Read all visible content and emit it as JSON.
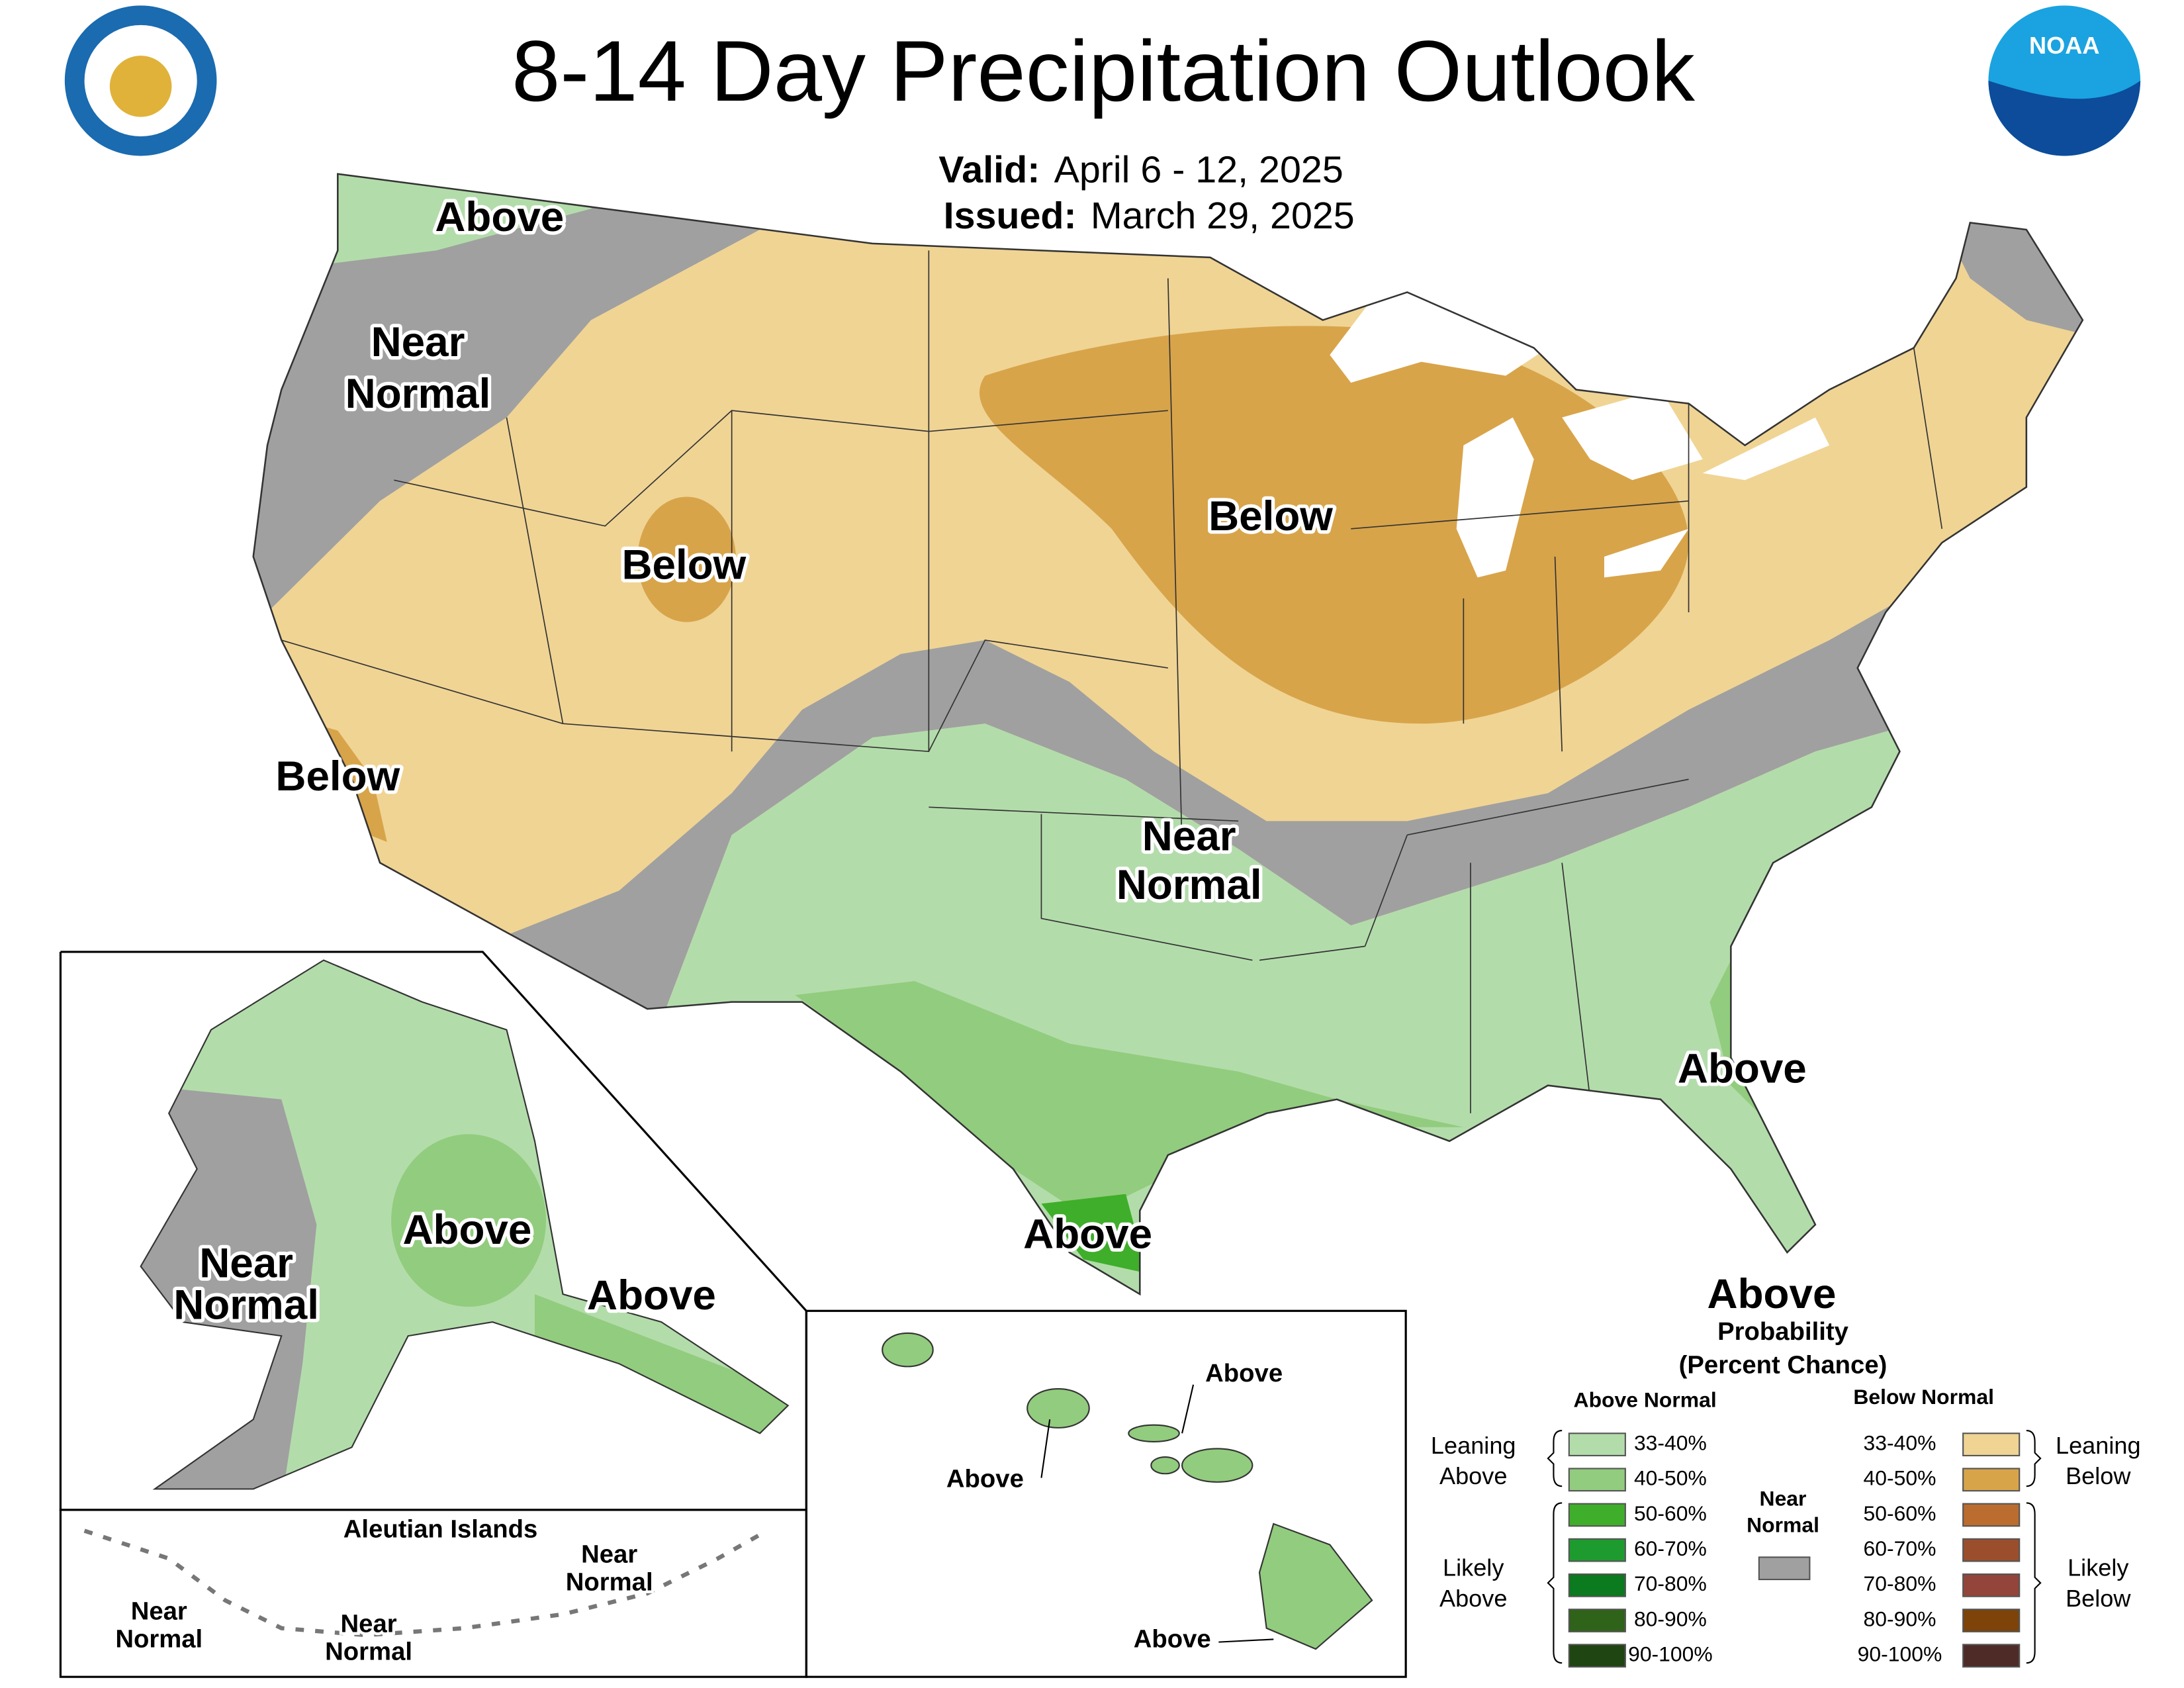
{
  "header": {
    "title": "8-14 Day Precipitation Outlook",
    "valid_label": "Valid:",
    "valid_dates": "April 6 - 12, 2025",
    "issued_label": "Issued:",
    "issued_date": "March 29, 2025"
  },
  "logos": {
    "noaa": "NOAA"
  },
  "map_labels": [
    "Above",
    "Near",
    "Normal",
    "Below",
    "Below",
    "Below",
    "Near",
    "Normal",
    "Above",
    "Above",
    "Above",
    "Near",
    "Normal",
    "Above",
    "Aleutian Islands",
    "Near",
    "Normal",
    "Near",
    "Normal",
    "Near",
    "Normal",
    "Above",
    "Above",
    "Above"
  ],
  "legend": {
    "title": "Above",
    "subtitle": "Probability",
    "subtitle_2": "(Percent Chance)",
    "above_header": "Above Normal",
    "below_header": "Below Normal",
    "above_ranges": [
      "33-40%",
      "40-50%",
      "50-60%",
      "60-70%",
      "70-80%",
      "80-90%",
      "90-100%"
    ],
    "above_colors": [
      "#b3dcab",
      "#92cc7e",
      "#3fae2a",
      "#1e9b2f",
      "#0c7a1e",
      "#2f6319",
      "#1f4512"
    ],
    "below_ranges": [
      "33-40%",
      "40-50%",
      "50-60%",
      "60-70%",
      "70-80%",
      "80-90%",
      "90-100%"
    ],
    "below_colors": [
      "#f0d494",
      "#d8a44a",
      "#bb6c2f",
      "#9b4e2c",
      "#93453b",
      "#7d4309",
      "#4f2b28"
    ],
    "near_label": [
      "Near",
      "Normal"
    ],
    "near_color": "#a0a0a0",
    "leaning_above": [
      "Leaning",
      "Above"
    ],
    "likely_above": [
      "Likely",
      "Above"
    ],
    "leaning_below": [
      "Leaning",
      "Below"
    ],
    "likely_below": [
      "Likely",
      "Below"
    ]
  }
}
